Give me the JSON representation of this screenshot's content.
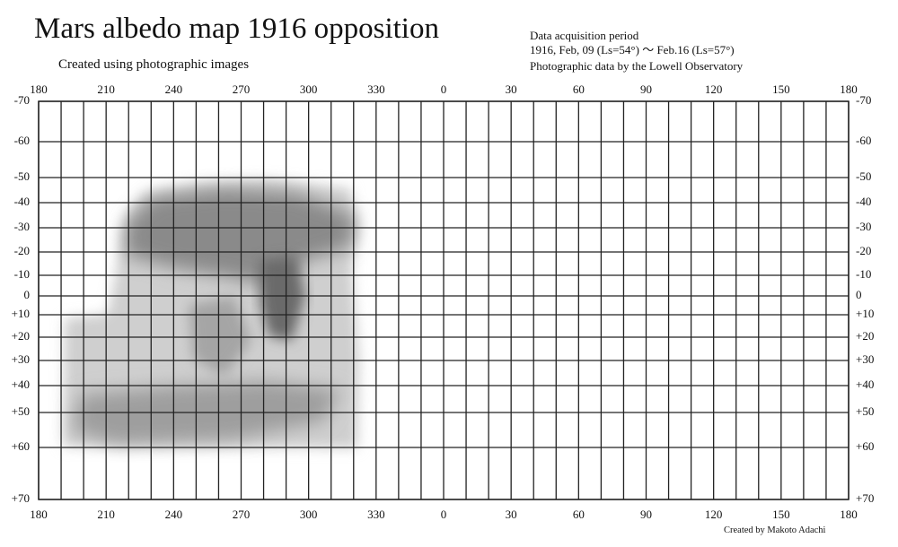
{
  "header": {
    "title": "Mars albedo map 1916 opposition",
    "subtitle": "Created using photographic images"
  },
  "info": [
    "Data acquisition period",
    "1916, Feb, 09 (Ls=54°) ～ Feb.16 (Ls=57°)",
    "Photographic data by the Lowell Observatory"
  ],
  "credit": "Created by Makoto Adachi",
  "longitude_labels": [
    "180",
    "210",
    "240",
    "270",
    "300",
    "330",
    "0",
    "30",
    "60",
    "90",
    "120",
    "150",
    "180"
  ],
  "latitude_labels": [
    "-70",
    "-60",
    "-50",
    "-40",
    "-30",
    "-20",
    "-10",
    "0",
    "+10",
    "+20",
    "+30",
    "+40",
    "+50",
    "+60",
    "+70"
  ]
}
